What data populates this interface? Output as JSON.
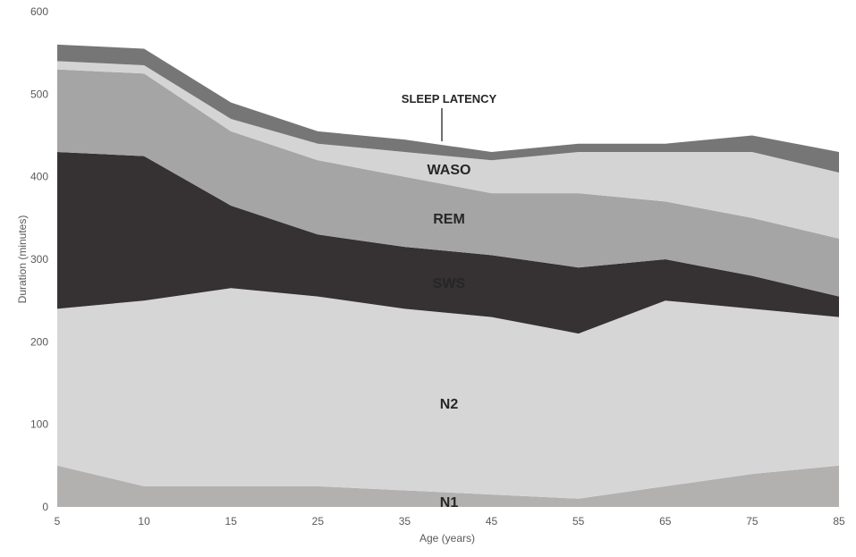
{
  "chart_data": {
    "type": "area",
    "stacked": true,
    "title": "",
    "xlabel": "Age (years)",
    "ylabel": "Duration (minutes)",
    "x": [
      "5",
      "10",
      "15",
      "25",
      "35",
      "45",
      "55",
      "65",
      "75",
      "85"
    ],
    "ylim": [
      0,
      600
    ],
    "yticks": [
      0,
      100,
      200,
      300,
      400,
      500,
      600
    ],
    "grid": false,
    "legend": "none",
    "series": [
      {
        "name": "N1",
        "color": "#b3b0b0",
        "values": [
          50,
          25,
          25,
          25,
          20,
          15,
          10,
          25,
          40,
          50
        ]
      },
      {
        "name": "N2",
        "color": "#d7d6d7",
        "values": [
          190,
          225,
          240,
          230,
          220,
          215,
          200,
          225,
          200,
          180
        ]
      },
      {
        "name": "SWS",
        "color": "#363234",
        "values": [
          190,
          175,
          100,
          75,
          75,
          75,
          80,
          50,
          40,
          25
        ]
      },
      {
        "name": "REM",
        "color": "#a6a5a6",
        "values": [
          100,
          100,
          90,
          90,
          85,
          75,
          90,
          70,
          70,
          70
        ]
      },
      {
        "name": "WASO",
        "color": "#d5d4d5",
        "values": [
          10,
          10,
          15,
          20,
          30,
          40,
          50,
          60,
          80,
          80
        ]
      },
      {
        "name": "SLEEP  LATENCY",
        "color": "#777677",
        "values": [
          20,
          20,
          20,
          15,
          15,
          10,
          10,
          10,
          20,
          25
        ]
      }
    ]
  },
  "labels": {
    "n1": "N1",
    "n2": "N2",
    "sws": "SWS",
    "rem": "REM",
    "waso": "WASO",
    "sleep_latency": "SLEEP  LATENCY"
  }
}
